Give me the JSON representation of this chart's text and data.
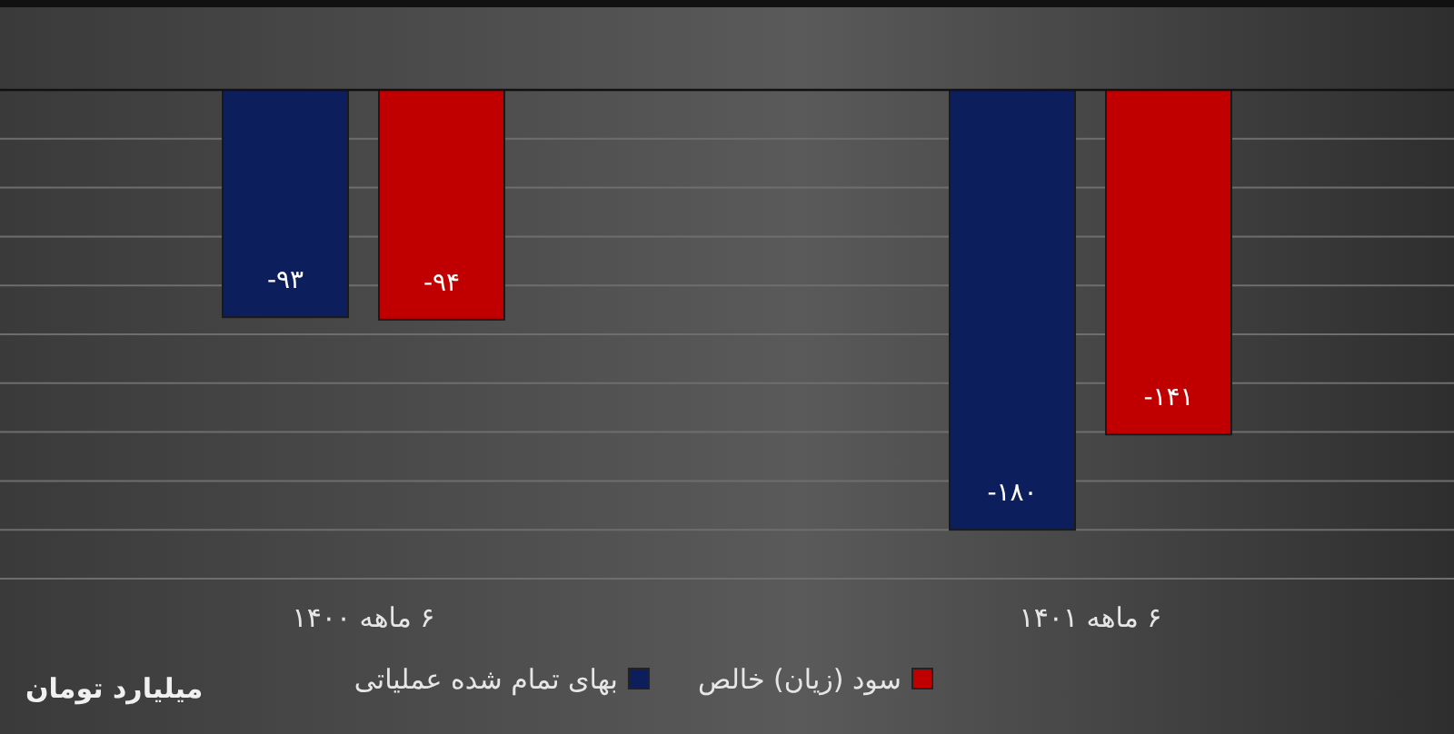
{
  "chart_data": {
    "type": "bar",
    "categories": [
      "۶ ماهه ۱۴۰۰",
      "۶ ماهه ۱۴۰۱"
    ],
    "series": [
      {
        "name": "بهای تمام شده عملیاتی",
        "color": "#0d1e5c",
        "values": [
          -93,
          -180
        ],
        "value_labels": [
          "-۹۳",
          "-۱۸۰"
        ]
      },
      {
        "name": "سود (زیان) خالص",
        "color": "#c00000",
        "values": [
          -94,
          -141
        ],
        "value_labels": [
          "-۹۴",
          "-۱۴۱"
        ]
      }
    ],
    "ylim": [
      -200,
      0
    ],
    "yticks": [
      {
        "value": -200,
        "label": null
      },
      {
        "value": -180,
        "label": null
      },
      {
        "value": -160,
        "label": null
      },
      {
        "value": -140,
        "label": null
      },
      {
        "value": -120,
        "label": null
      },
      {
        "value": -100,
        "label": null
      },
      {
        "value": -80,
        "label": null
      },
      {
        "value": -60,
        "label": null
      },
      {
        "value": -40,
        "label": null
      },
      {
        "value": -20,
        "label": null
      },
      {
        "value": 0,
        "label": null
      }
    ],
    "grid": "y",
    "legend": "bottom",
    "annotations": [
      "میلیارد تومان"
    ]
  }
}
